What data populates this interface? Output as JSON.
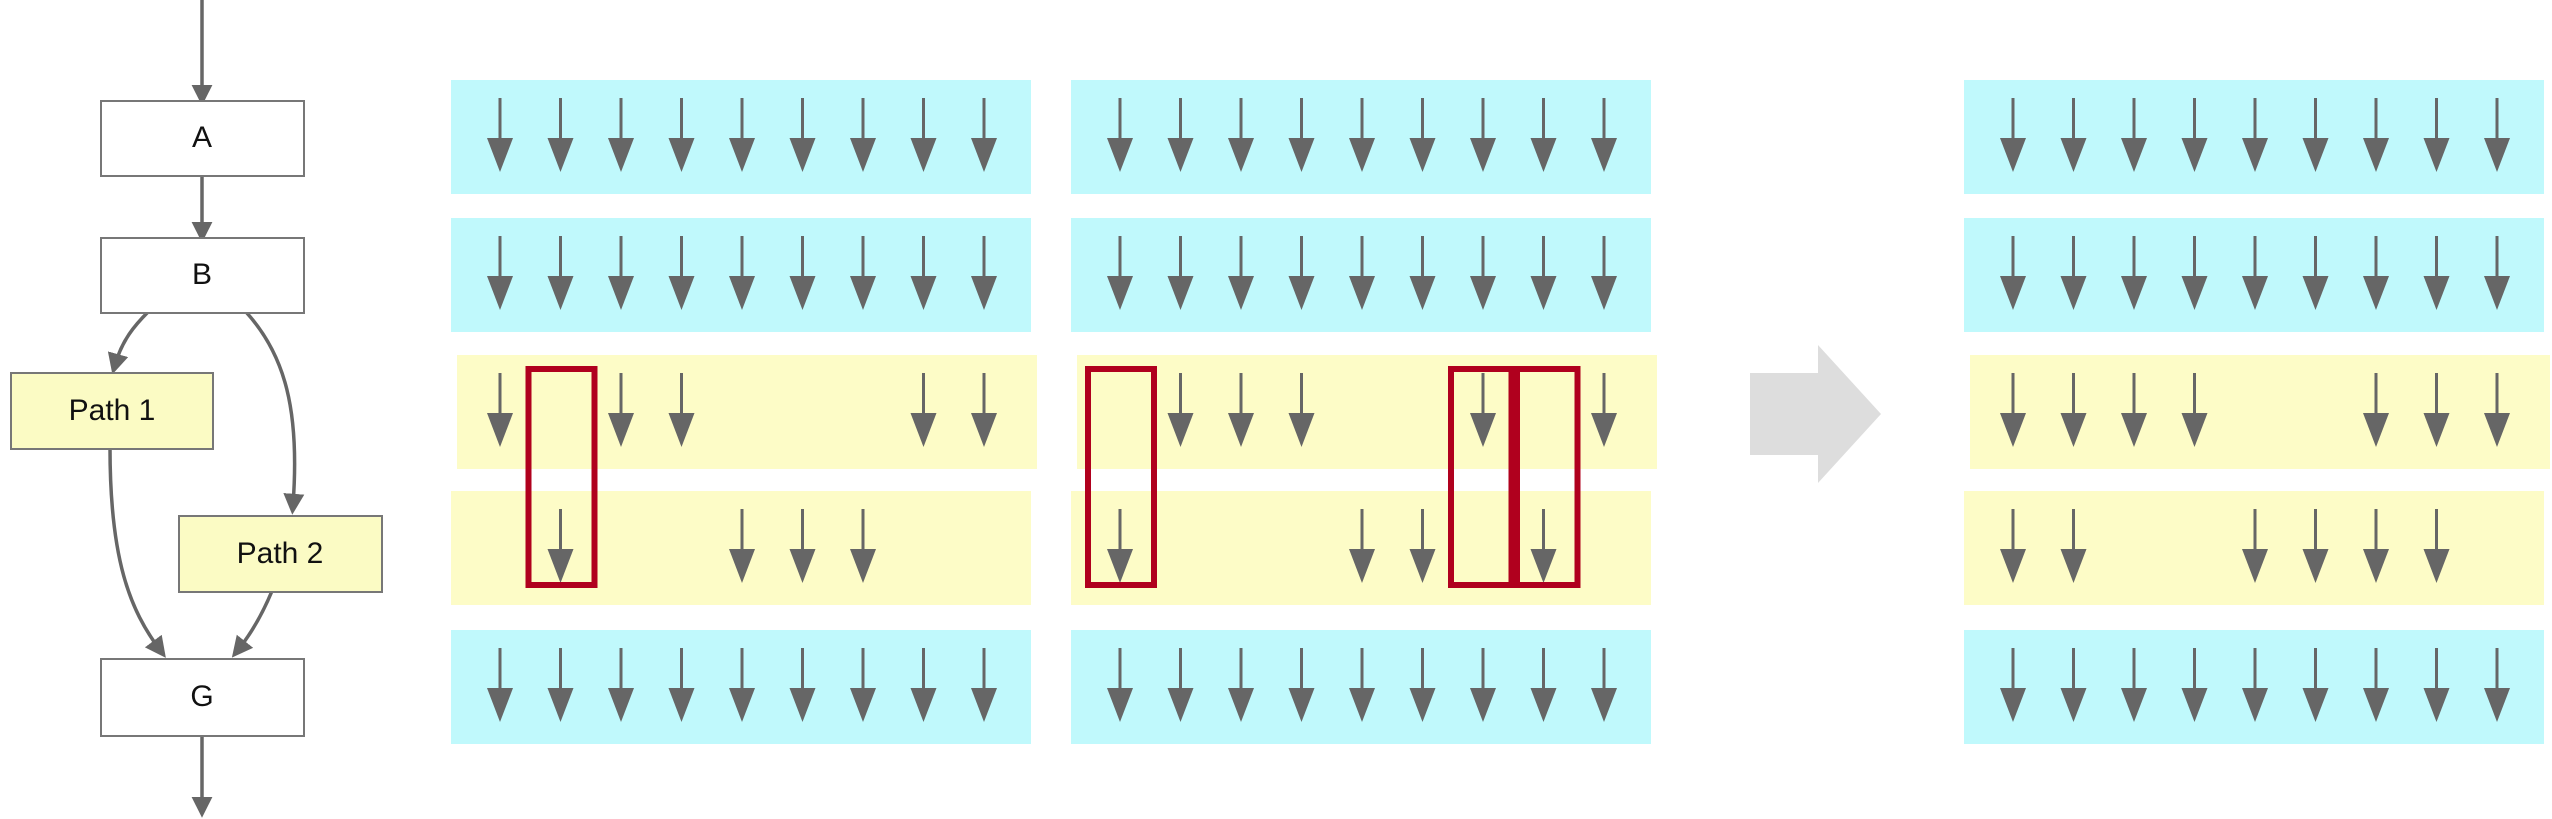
{
  "flowchart": {
    "nodes": [
      {
        "id": "A",
        "label": "A",
        "kind": "plain"
      },
      {
        "id": "B",
        "label": "B",
        "kind": "plain"
      },
      {
        "id": "P1",
        "label": "Path 1",
        "kind": "branch"
      },
      {
        "id": "P2",
        "label": "Path 2",
        "kind": "branch"
      },
      {
        "id": "G",
        "label": "G",
        "kind": "plain"
      }
    ]
  },
  "colors": {
    "uniform_band": "#c0f9fc",
    "divergent_band": "#fdfcc7",
    "arrow": "#666666",
    "highlight_box": "#b0001e",
    "transition_arrow": "#dddddd",
    "node_border": "#777777",
    "branch_node_fill": "#fbfbc4"
  },
  "panels": [
    {
      "name": "warp-before-1",
      "rows": [
        [
          1,
          1,
          1,
          1,
          1,
          1,
          1,
          1,
          1
        ],
        [
          1,
          1,
          1,
          1,
          1,
          1,
          1,
          1,
          1
        ],
        [
          1,
          0,
          1,
          1,
          0,
          0,
          0,
          1,
          1
        ],
        [
          0,
          1,
          0,
          0,
          1,
          1,
          1,
          0,
          0
        ],
        [
          1,
          1,
          1,
          1,
          1,
          1,
          1,
          1,
          1
        ]
      ],
      "highlight_lanes": [
        1
      ]
    },
    {
      "name": "warp-before-2",
      "rows": [
        [
          1,
          1,
          1,
          1,
          1,
          1,
          1,
          1,
          1
        ],
        [
          1,
          1,
          1,
          1,
          1,
          1,
          1,
          1,
          1
        ],
        [
          0,
          1,
          1,
          1,
          0,
          0,
          1,
          0,
          1
        ],
        [
          1,
          0,
          0,
          0,
          1,
          1,
          0,
          1,
          0
        ],
        [
          1,
          1,
          1,
          1,
          1,
          1,
          1,
          1,
          1
        ]
      ],
      "highlight_lanes": [
        0,
        6,
        7
      ]
    },
    {
      "name": "warp-after",
      "rows": [
        [
          1,
          1,
          1,
          1,
          1,
          1,
          1,
          1,
          1
        ],
        [
          1,
          1,
          1,
          1,
          1,
          1,
          1,
          1,
          1
        ],
        [
          1,
          1,
          1,
          1,
          0,
          0,
          1,
          1,
          1
        ],
        [
          1,
          1,
          0,
          0,
          1,
          1,
          1,
          1,
          0
        ],
        [
          1,
          1,
          1,
          1,
          1,
          1,
          1,
          1,
          1
        ]
      ],
      "highlight_lanes": []
    }
  ],
  "row_kinds": [
    "uniform",
    "uniform",
    "divergent",
    "divergent",
    "uniform"
  ]
}
